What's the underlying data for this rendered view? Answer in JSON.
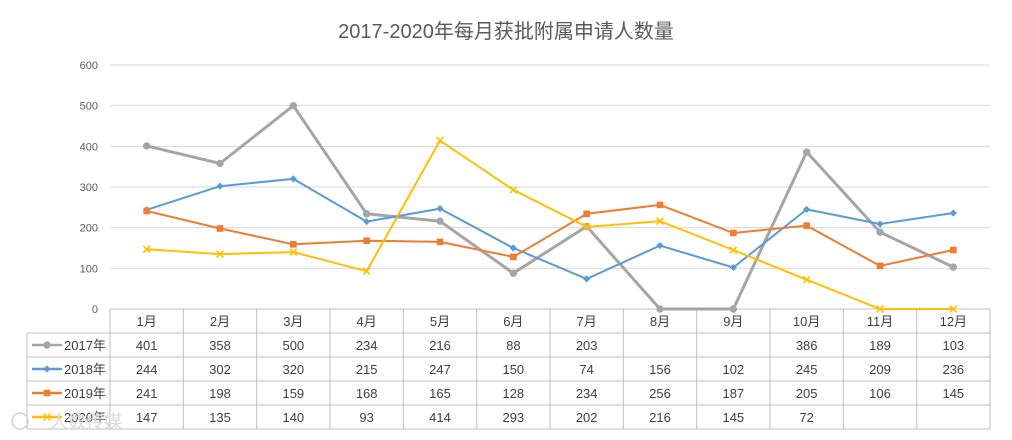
{
  "chart_data": {
    "type": "line",
    "title": "2017-2020年每月获批附属申请人数量",
    "xlabel": "",
    "ylabel": "",
    "ylim": [
      0,
      600
    ],
    "yticks": [
      "0",
      "100",
      "200",
      "300",
      "400",
      "500",
      "600"
    ],
    "grid": true,
    "legend": "data-table",
    "categories": [
      "1月",
      "2月",
      "3月",
      "4月",
      "5月",
      "6月",
      "7月",
      "8月",
      "9月",
      "10月",
      "11月",
      "12月"
    ],
    "series": [
      {
        "name": "2017年",
        "color": "#a5a5a5",
        "marker": "circle",
        "values": [
          401,
          358,
          500,
          234,
          216,
          88,
          203,
          0,
          0,
          386,
          189,
          103
        ],
        "table_values": [
          "401",
          "358",
          "500",
          "234",
          "216",
          "88",
          "203",
          "",
          "",
          "386",
          "189",
          "103"
        ]
      },
      {
        "name": "2018年",
        "color": "#5b9bd5",
        "marker": "diamond",
        "values": [
          244,
          302,
          320,
          215,
          247,
          150,
          74,
          156,
          102,
          245,
          209,
          236
        ],
        "table_values": [
          "244",
          "302",
          "320",
          "215",
          "247",
          "150",
          "74",
          "156",
          "102",
          "245",
          "209",
          "236"
        ]
      },
      {
        "name": "2019年",
        "color": "#ed7d31",
        "marker": "square",
        "values": [
          241,
          198,
          159,
          168,
          165,
          128,
          234,
          256,
          187,
          205,
          106,
          145
        ],
        "table_values": [
          "241",
          "198",
          "159",
          "168",
          "165",
          "128",
          "234",
          "256",
          "187",
          "205",
          "106",
          "145"
        ]
      },
      {
        "name": "2020年",
        "color": "#ffc000",
        "marker": "x",
        "values": [
          147,
          135,
          140,
          93,
          414,
          293,
          202,
          216,
          145,
          72,
          0,
          0
        ],
        "table_values": [
          "147",
          "135",
          "140",
          "93",
          "414",
          "293",
          "202",
          "216",
          "145",
          "72",
          "",
          ""
        ]
      }
    ]
  },
  "watermark": "人数传媒"
}
